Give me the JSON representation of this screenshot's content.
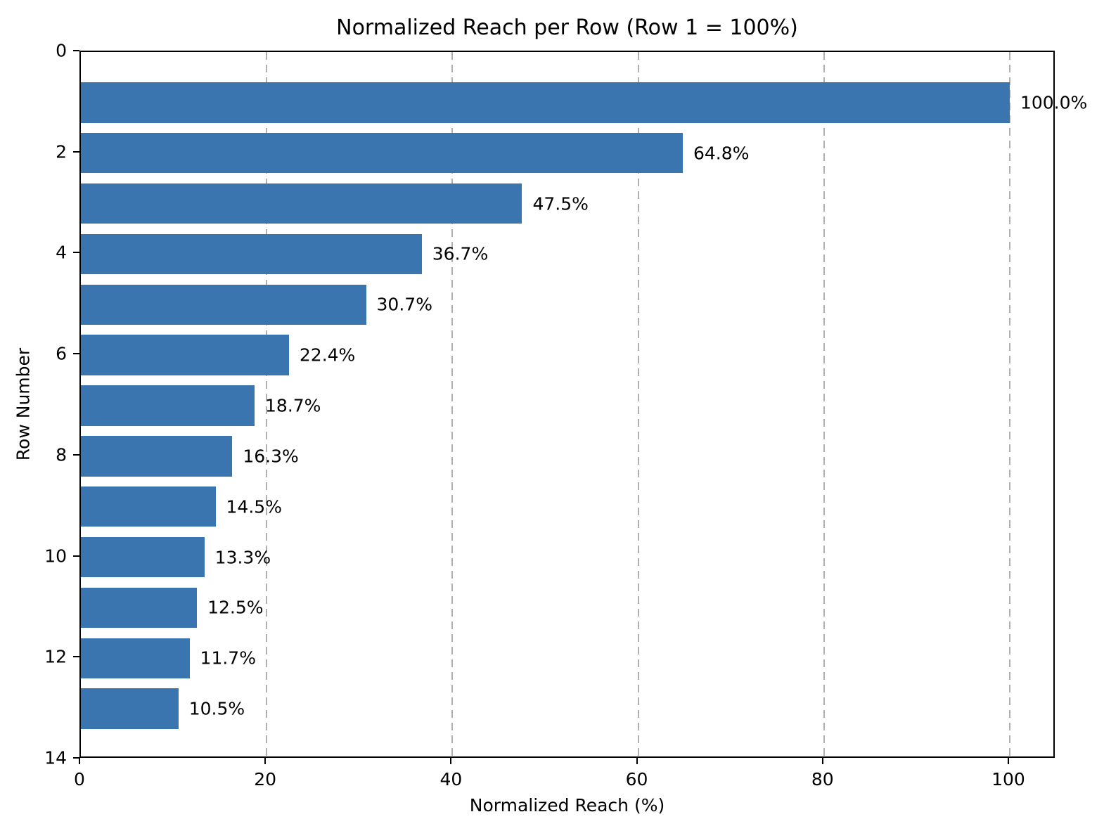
{
  "chart_data": {
    "type": "bar",
    "orientation": "horizontal",
    "title": "Normalized Reach per Row (Row 1 = 100%)",
    "xlabel": "Normalized Reach (%)",
    "ylabel": "Row Number",
    "rows": [
      1,
      2,
      3,
      4,
      5,
      6,
      7,
      8,
      9,
      10,
      11,
      12,
      13
    ],
    "values": [
      100.0,
      64.8,
      47.5,
      36.7,
      30.7,
      22.4,
      18.7,
      16.3,
      14.5,
      13.3,
      12.5,
      11.7,
      10.5
    ],
    "bar_labels": [
      "100.0%",
      "64.8%",
      "47.5%",
      "36.7%",
      "30.7%",
      "22.4%",
      "18.7%",
      "16.3%",
      "14.5%",
      "13.3%",
      "12.5%",
      "11.7%",
      "10.5%"
    ],
    "x_ticks": [
      0,
      20,
      40,
      60,
      80,
      100
    ],
    "x_tick_labels": [
      "0",
      "20",
      "40",
      "60",
      "80",
      "100"
    ],
    "y_ticks": [
      0,
      2,
      4,
      6,
      8,
      10,
      12,
      14
    ],
    "y_tick_labels": [
      "0",
      "2",
      "4",
      "6",
      "8",
      "10",
      "12",
      "14"
    ],
    "xlim": [
      0,
      105
    ],
    "ylim": [
      14,
      0
    ],
    "bar_height": 0.8,
    "grid": {
      "axis": "x",
      "style": "dashed",
      "on": true
    },
    "legend": null,
    "colors": {
      "bar": "#3b75af",
      "grid": "#b0b0b0",
      "spine": "#000000",
      "text": "#000000",
      "background": "#ffffff"
    }
  }
}
